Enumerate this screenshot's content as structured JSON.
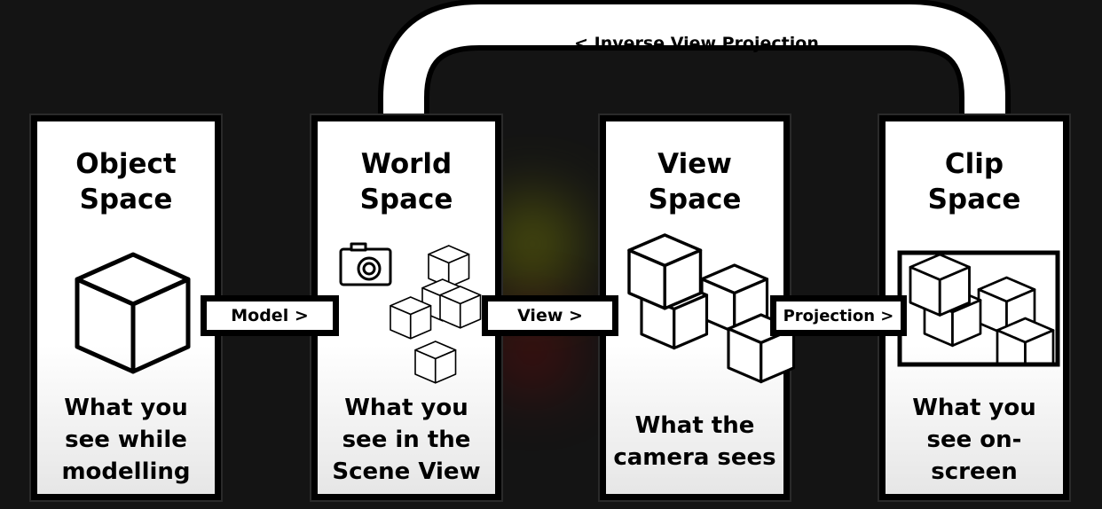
{
  "panels": [
    {
      "title": "Object\nSpace",
      "caption": "What you\nsee while\nmodelling"
    },
    {
      "title": "World\nSpace",
      "caption": "What you\nsee in the\nScene View"
    },
    {
      "title": "View\nSpace",
      "caption": "What the\ncamera sees"
    },
    {
      "title": "Clip\nSpace",
      "caption": "What you\nsee on-\nscreen"
    }
  ],
  "transforms": {
    "model": "Model >",
    "view": "View >",
    "projection": "Projection >",
    "inverse": "< Inverse View Projection"
  },
  "icons": [
    "cube-icon",
    "camera-icon",
    "view-frustum-icon"
  ]
}
